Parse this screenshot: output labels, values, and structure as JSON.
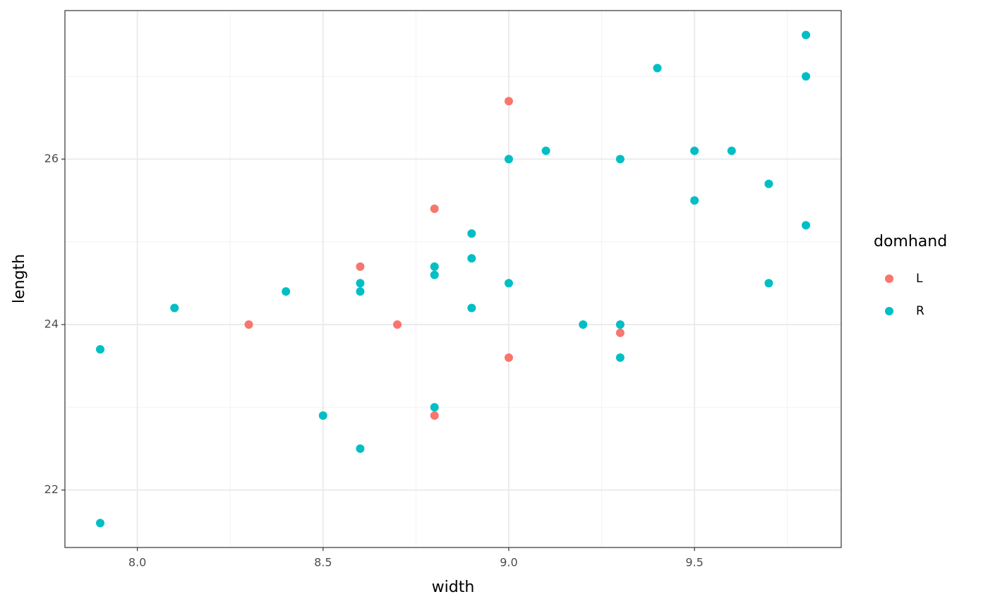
{
  "chart_data": {
    "type": "scatter",
    "x_label": "width",
    "y_label": "length",
    "legend_title": "domhand",
    "legend": "right",
    "grid": true,
    "xlim": [
      7.805,
      9.895
    ],
    "ylim": [
      21.305,
      27.795
    ],
    "xticks": [
      {
        "value": 8,
        "label": "8.0"
      },
      8.5,
      {
        "value": 9,
        "label": "9.0"
      },
      9.5
    ],
    "yticks": [
      22,
      24,
      26
    ],
    "x_minor_grid": [
      8.25,
      8.75,
      9.25,
      9.75
    ],
    "y_minor_grid": [
      23,
      25,
      27
    ],
    "series": [
      {
        "name": "L",
        "color": "#F8766D",
        "x": [
          8.3,
          8.6,
          8.7,
          8.8,
          8.8,
          9.0,
          9.0,
          9.3
        ],
        "values": [
          24.0,
          24.7,
          24.0,
          25.4,
          22.9,
          26.7,
          23.6,
          23.9
        ]
      },
      {
        "name": "R",
        "color": "#00BFC4",
        "x": [
          7.9,
          7.9,
          8.1,
          8.4,
          8.5,
          8.6,
          8.6,
          8.6,
          8.8,
          8.8,
          8.8,
          8.9,
          8.9,
          8.9,
          9.0,
          9.0,
          9.1,
          9.2,
          9.3,
          9.3,
          9.3,
          9.4,
          9.5,
          9.5,
          9.6,
          9.7,
          9.7,
          9.8,
          9.8,
          9.8
        ],
        "values": [
          23.7,
          21.6,
          24.2,
          24.4,
          22.9,
          24.5,
          24.4,
          22.5,
          24.7,
          24.6,
          23.0,
          25.1,
          24.8,
          24.2,
          26.0,
          24.5,
          26.1,
          24.0,
          26.0,
          24.0,
          23.6,
          27.1,
          26.1,
          25.5,
          26.1,
          25.7,
          24.5,
          27.5,
          27.0,
          25.2
        ]
      }
    ]
  }
}
